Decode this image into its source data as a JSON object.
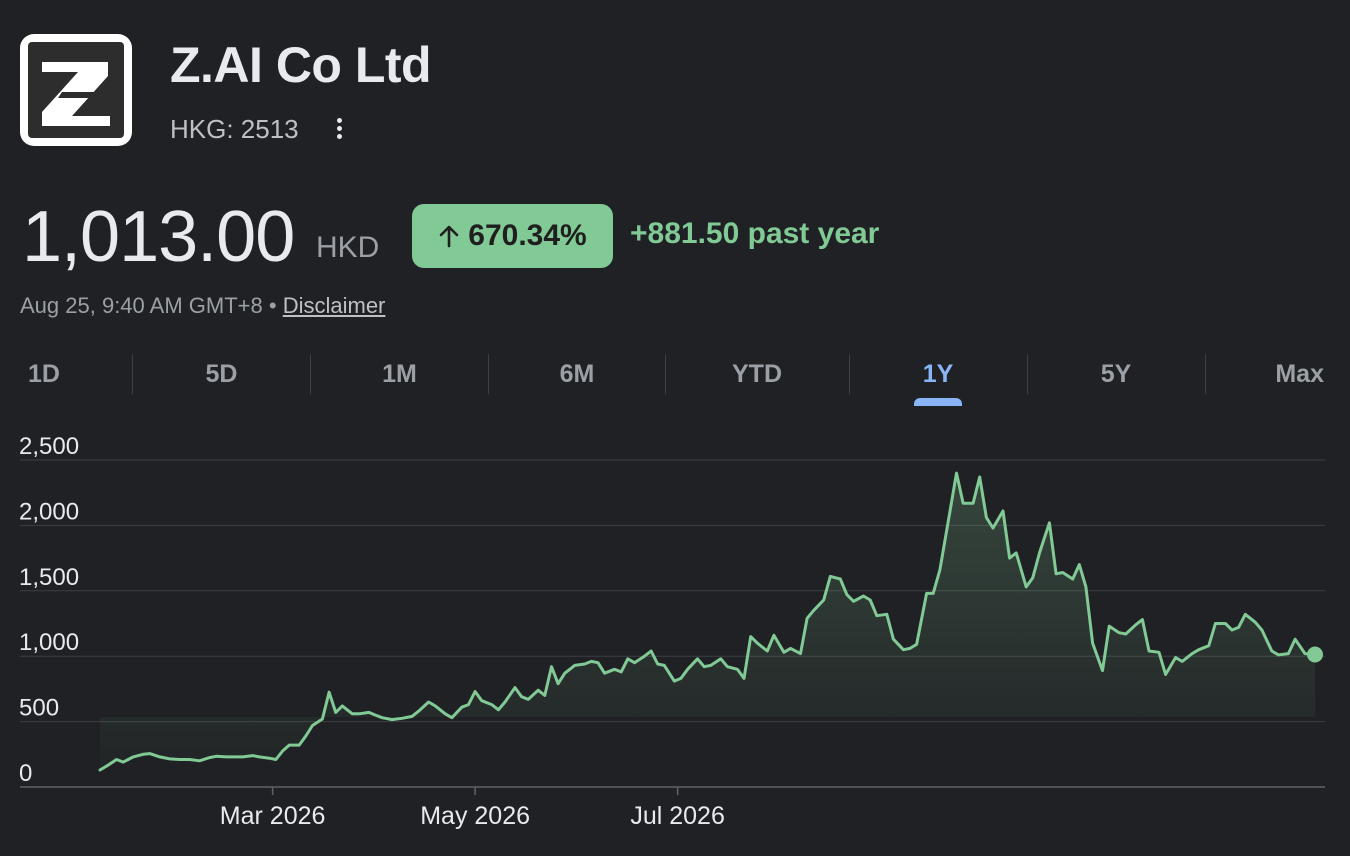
{
  "company": {
    "name": "Z.AI Co Ltd",
    "ticker": "HKG: 2513",
    "logo_letter": "Z"
  },
  "quote": {
    "price": "1,013.00",
    "currency": "HKD",
    "change_pct": "670.34%",
    "change_abs": "+881.50 past year",
    "arrow_icon": "arrow-up-icon",
    "timestamp": "Aug 25, 9:40 AM GMT+8",
    "separator": "•",
    "disclaimer": "Disclaimer"
  },
  "ranges": {
    "items": [
      "1D",
      "5D",
      "1M",
      "6M",
      "YTD",
      "1Y",
      "5Y",
      "Max"
    ],
    "active": "1Y"
  },
  "colors": {
    "background": "#202124",
    "line": "#81c995",
    "badge": "#81c995",
    "active_tab": "#8ab4f8",
    "grid": "#3c4043"
  },
  "chart_data": {
    "type": "line",
    "title": "",
    "xlabel": "",
    "ylabel": "",
    "ylim": [
      0,
      2500
    ],
    "y_ticks": [
      0,
      500,
      1000,
      1500,
      2000,
      2500
    ],
    "y_tick_labels": [
      "0",
      "500",
      "1,000",
      "1,500",
      "2,000",
      "2,500"
    ],
    "x_ticks": [
      "2026-03-01",
      "2026-05-01",
      "2026-07-01"
    ],
    "x_tick_labels": [
      "Mar 2026",
      "May 2026",
      "Jul 2026"
    ],
    "grid": true,
    "series": [
      {
        "color": "#81c995",
        "points": [
          [
            "2026-01-08",
            130
          ],
          [
            "2026-01-10",
            160
          ],
          [
            "2026-01-13",
            210
          ],
          [
            "2026-01-15",
            190
          ],
          [
            "2026-01-18",
            230
          ],
          [
            "2026-01-21",
            250
          ],
          [
            "2026-01-23",
            255
          ],
          [
            "2026-01-26",
            230
          ],
          [
            "2026-01-29",
            215
          ],
          [
            "2026-02-01",
            210
          ],
          [
            "2026-02-04",
            210
          ],
          [
            "2026-02-07",
            200
          ],
          [
            "2026-02-10",
            225
          ],
          [
            "2026-02-12",
            235
          ],
          [
            "2026-02-15",
            230
          ],
          [
            "2026-02-18",
            230
          ],
          [
            "2026-02-20",
            230
          ],
          [
            "2026-02-23",
            240
          ],
          [
            "2026-02-25",
            230
          ],
          [
            "2026-02-28",
            220
          ],
          [
            "2026-03-02",
            210
          ],
          [
            "2026-03-04",
            275
          ],
          [
            "2026-03-06",
            320
          ],
          [
            "2026-03-09",
            320
          ],
          [
            "2026-03-11",
            390
          ],
          [
            "2026-03-13",
            470
          ],
          [
            "2026-03-16",
            520
          ],
          [
            "2026-03-18",
            725
          ],
          [
            "2026-03-20",
            570
          ],
          [
            "2026-03-22",
            620
          ],
          [
            "2026-03-25",
            560
          ],
          [
            "2026-03-27",
            560
          ],
          [
            "2026-03-30",
            570
          ],
          [
            "2026-04-01",
            550
          ],
          [
            "2026-04-03",
            530
          ],
          [
            "2026-04-06",
            515
          ],
          [
            "2026-04-09",
            525
          ],
          [
            "2026-04-12",
            540
          ],
          [
            "2026-04-14",
            580
          ],
          [
            "2026-04-17",
            650
          ],
          [
            "2026-04-19",
            620
          ],
          [
            "2026-04-22",
            560
          ],
          [
            "2026-04-24",
            530
          ],
          [
            "2026-04-27",
            610
          ],
          [
            "2026-04-29",
            630
          ],
          [
            "2026-05-01",
            730
          ],
          [
            "2026-05-03",
            660
          ],
          [
            "2026-05-06",
            630
          ],
          [
            "2026-05-08",
            590
          ],
          [
            "2026-05-10",
            650
          ],
          [
            "2026-05-13",
            760
          ],
          [
            "2026-05-15",
            690
          ],
          [
            "2026-05-17",
            670
          ],
          [
            "2026-05-20",
            740
          ],
          [
            "2026-05-22",
            700
          ],
          [
            "2026-05-24",
            920
          ],
          [
            "2026-05-26",
            790
          ],
          [
            "2026-05-28",
            870
          ],
          [
            "2026-05-31",
            930
          ],
          [
            "2026-06-03",
            940
          ],
          [
            "2026-06-05",
            960
          ],
          [
            "2026-06-07",
            950
          ],
          [
            "2026-06-09",
            870
          ],
          [
            "2026-06-12",
            900
          ],
          [
            "2026-06-14",
            880
          ],
          [
            "2026-06-16",
            980
          ],
          [
            "2026-06-18",
            950
          ],
          [
            "2026-06-21",
            1000
          ],
          [
            "2026-06-23",
            1040
          ],
          [
            "2026-06-25",
            940
          ],
          [
            "2026-06-27",
            930
          ],
          [
            "2026-06-30",
            810
          ],
          [
            "2026-07-02",
            830
          ],
          [
            "2026-07-04",
            900
          ],
          [
            "2026-07-07",
            980
          ],
          [
            "2026-07-09",
            920
          ],
          [
            "2026-07-11",
            930
          ],
          [
            "2026-07-14",
            980
          ],
          [
            "2026-07-16",
            920
          ],
          [
            "2026-07-19",
            900
          ],
          [
            "2026-07-21",
            830
          ],
          [
            "2026-07-23",
            1150
          ],
          [
            "2026-07-25",
            1100
          ],
          [
            "2026-07-28",
            1040
          ],
          [
            "2026-07-30",
            1160
          ],
          [
            "2026-08-02",
            1030
          ],
          [
            "2026-08-04",
            1060
          ],
          [
            "2026-08-07",
            1020
          ],
          [
            "2026-08-09",
            1290
          ],
          [
            "2026-08-11",
            1350
          ],
          [
            "2026-08-14",
            1430
          ],
          [
            "2026-08-16",
            1610
          ],
          [
            "2026-08-19",
            1590
          ],
          [
            "2026-08-21",
            1470
          ],
          [
            "2026-08-23",
            1420
          ],
          [
            "2026-08-26",
            1460
          ],
          [
            "2026-08-28",
            1430
          ],
          [
            "2026-08-30",
            1310
          ],
          [
            "2026-09-02",
            1320
          ],
          [
            "2026-09-04",
            1130
          ],
          [
            "2026-09-07",
            1050
          ],
          [
            "2026-09-09",
            1060
          ],
          [
            "2026-09-11",
            1090
          ],
          [
            "2026-09-14",
            1480
          ],
          [
            "2026-09-16",
            1480
          ],
          [
            "2026-09-18",
            1660
          ],
          [
            "2026-09-21",
            2100
          ],
          [
            "2026-09-23",
            2400
          ],
          [
            "2026-09-25",
            2170
          ],
          [
            "2026-09-28",
            2170
          ],
          [
            "2026-09-30",
            2370
          ],
          [
            "2026-10-02",
            2060
          ],
          [
            "2026-10-04",
            1980
          ],
          [
            "2026-10-07",
            2110
          ],
          [
            "2026-10-09",
            1750
          ],
          [
            "2026-10-11",
            1790
          ],
          [
            "2026-10-14",
            1530
          ],
          [
            "2026-10-16",
            1600
          ],
          [
            "2026-10-18",
            1790
          ],
          [
            "2026-10-21",
            2020
          ],
          [
            "2026-10-23",
            1630
          ],
          [
            "2026-10-25",
            1640
          ],
          [
            "2026-10-28",
            1590
          ],
          [
            "2026-10-30",
            1700
          ],
          [
            "2026-11-01",
            1530
          ],
          [
            "2026-11-03",
            1100
          ],
          [
            "2026-11-06",
            890
          ],
          [
            "2026-11-08",
            1230
          ],
          [
            "2026-11-11",
            1180
          ],
          [
            "2026-11-13",
            1170
          ],
          [
            "2026-11-16",
            1240
          ],
          [
            "2026-11-18",
            1280
          ],
          [
            "2026-11-20",
            1040
          ],
          [
            "2026-11-23",
            1030
          ],
          [
            "2026-11-25",
            860
          ],
          [
            "2026-11-28",
            990
          ],
          [
            "2026-11-30",
            960
          ],
          [
            "2026-12-03",
            1020
          ],
          [
            "2026-12-05",
            1050
          ],
          [
            "2026-12-08",
            1080
          ],
          [
            "2026-12-10",
            1250
          ],
          [
            "2026-12-13",
            1250
          ],
          [
            "2026-12-15",
            1200
          ],
          [
            "2026-12-17",
            1220
          ],
          [
            "2026-12-19",
            1320
          ],
          [
            "2026-12-22",
            1260
          ],
          [
            "2026-12-24",
            1200
          ],
          [
            "2026-12-27",
            1040
          ],
          [
            "2026-12-29",
            1010
          ],
          [
            "2027-01-01",
            1020
          ],
          [
            "2027-01-03",
            1130
          ],
          [
            "2027-01-06",
            1020
          ],
          [
            "2027-01-09",
            1013
          ]
        ]
      }
    ]
  }
}
